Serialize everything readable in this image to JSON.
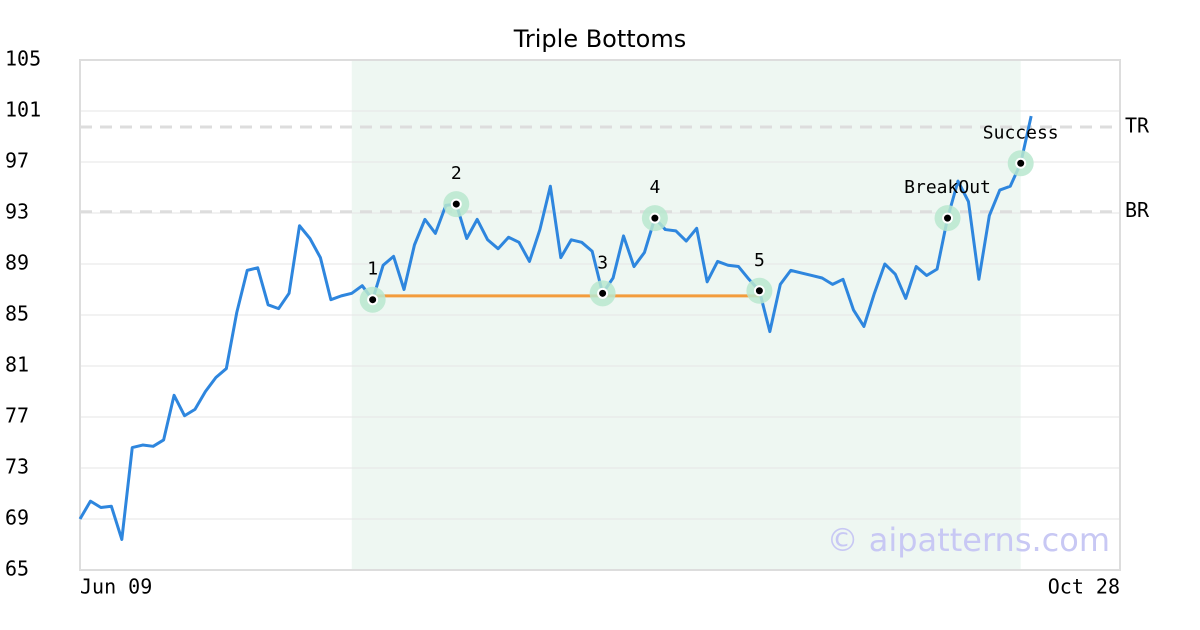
{
  "chart_data": {
    "type": "line",
    "title": "Triple Bottoms",
    "x": [
      0,
      1,
      2,
      3,
      4,
      5,
      6,
      7,
      8,
      9,
      10,
      11,
      12,
      13,
      14,
      15,
      16,
      17,
      18,
      19,
      20,
      21,
      22,
      23,
      24,
      25,
      26,
      27,
      28,
      29,
      30,
      31,
      32,
      33,
      34,
      35,
      36,
      37,
      38,
      39,
      40,
      41,
      42,
      43,
      44,
      45,
      46,
      47,
      48,
      49,
      50,
      51,
      52,
      53,
      54,
      55,
      56,
      57,
      58,
      59,
      60,
      61,
      62,
      63,
      64,
      65,
      66,
      67,
      68,
      69,
      70,
      71,
      72,
      73,
      74,
      75,
      76,
      77,
      78,
      79,
      80,
      81,
      82,
      83,
      84,
      85,
      86,
      87,
      88,
      89,
      90,
      91
    ],
    "values": [
      69.0,
      70.4,
      69.9,
      70.0,
      67.4,
      74.6,
      74.8,
      74.7,
      75.2,
      78.7,
      77.1,
      77.6,
      79.0,
      80.1,
      80.8,
      85.2,
      88.5,
      88.7,
      85.8,
      85.5,
      86.7,
      92.0,
      91.0,
      89.5,
      86.2,
      86.5,
      86.7,
      87.3,
      86.2,
      88.9,
      89.6,
      87.0,
      90.5,
      92.5,
      91.4,
      93.6,
      93.7,
      91.0,
      92.5,
      90.9,
      90.2,
      91.1,
      90.7,
      89.2,
      91.7,
      95.1,
      89.5,
      90.9,
      90.7,
      90.0,
      86.7,
      87.9,
      91.2,
      88.8,
      89.9,
      92.6,
      91.7,
      91.6,
      90.8,
      91.8,
      87.6,
      89.2,
      88.9,
      88.8,
      87.8,
      86.9,
      83.7,
      87.4,
      88.5,
      88.3,
      88.1,
      87.9,
      87.4,
      87.8,
      85.4,
      84.1,
      86.7,
      89.0,
      88.2,
      86.3,
      88.8,
      88.1,
      88.6,
      92.6,
      95.5,
      93.9,
      87.8,
      92.8,
      94.8,
      95.1,
      96.9,
      100.6
    ],
    "color": "#2e86de",
    "xlim": [
      0,
      99.5
    ],
    "xticks": [
      {
        "value": 0,
        "label": "Jun 09"
      },
      {
        "value": 99.5,
        "label": "Oct 28"
      }
    ],
    "ylim": [
      65,
      105
    ],
    "yticks": [
      65,
      69,
      73,
      77,
      81,
      85,
      89,
      93,
      97,
      101,
      105
    ],
    "grid": true,
    "shaded_range": [
      26,
      90
    ],
    "levels": [
      {
        "label": "TR",
        "value": 99.75
      },
      {
        "label": "BR",
        "value": 93.1
      }
    ],
    "support": {
      "x": [
        28,
        65
      ],
      "y": 86.5,
      "color": "#f39c3c"
    },
    "points": [
      {
        "label": "1",
        "x": 28,
        "y": 86.2
      },
      {
        "label": "2",
        "x": 36,
        "y": 93.7
      },
      {
        "label": "3",
        "x": 50,
        "y": 86.7
      },
      {
        "label": "4",
        "x": 55,
        "y": 92.6
      },
      {
        "label": "5",
        "x": 65,
        "y": 86.9
      },
      {
        "label": "BreakOut",
        "x": 83,
        "y": 92.6
      },
      {
        "label": "Success",
        "x": 90,
        "y": 96.9
      }
    ],
    "watermark": "© aipatterns.com"
  }
}
